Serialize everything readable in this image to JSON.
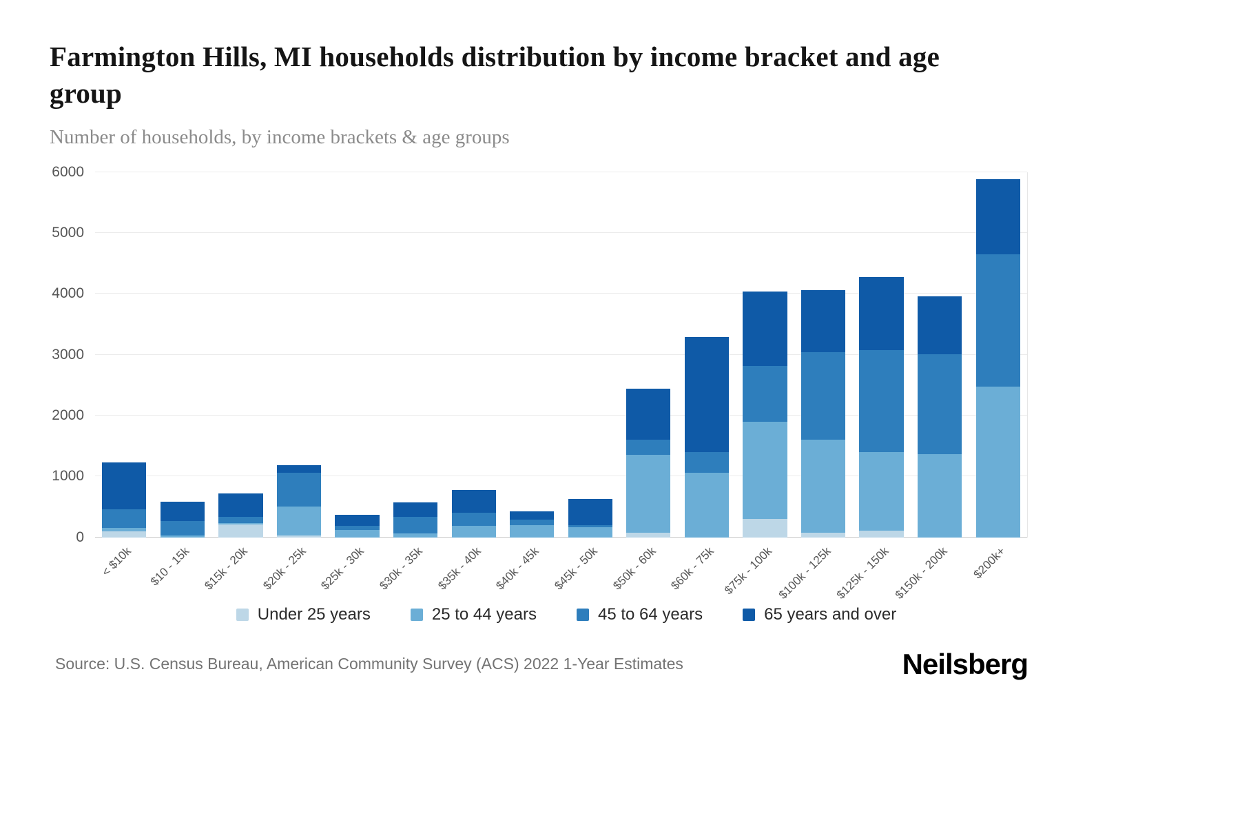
{
  "title": "Farmington Hills, MI households distribution by income bracket and age group",
  "subtitle": "Number of households, by income brackets & age groups",
  "source": "Source: U.S. Census Bureau, American Community Survey (ACS) 2022 1-Year Estimates",
  "brand": "Neilsberg",
  "chart_data": {
    "type": "bar",
    "stacked": true,
    "title": "Farmington Hills, MI households distribution by income bracket and age group",
    "xlabel": "",
    "ylabel": "Number of households",
    "ylim": [
      0,
      6000
    ],
    "yticks": [
      0,
      1000,
      2000,
      3000,
      4000,
      5000,
      6000
    ],
    "grid": true,
    "legend_position": "bottom",
    "categories": [
      "< $10k",
      "$10 - 15k",
      "$15k - 20k",
      "$20k - 25k",
      "$25k - 30k",
      "$30k - 35k",
      "$35k - 40k",
      "$40k - 45k",
      "$45k - 50k",
      "$50k - 60k",
      "$60k - 75k",
      "$75k - 100k",
      "$100k - 125k",
      "$125k - 150k",
      "$150k - 200k",
      "$200k+"
    ],
    "series": [
      {
        "name": "Under 25 years",
        "color": "#bdd7e7",
        "values": [
          95,
          0,
          215,
          30,
          0,
          0,
          0,
          0,
          0,
          80,
          0,
          300,
          80,
          110,
          0,
          0
        ]
      },
      {
        "name": "25 to 44 years",
        "color": "#6baed6",
        "values": [
          60,
          35,
          15,
          480,
          120,
          60,
          185,
          200,
          170,
          1270,
          1060,
          1600,
          1520,
          1290,
          1370,
          2470
        ]
      },
      {
        "name": "45 to 64 years",
        "color": "#2e7ebc",
        "values": [
          305,
          235,
          100,
          545,
          70,
          270,
          215,
          95,
          25,
          250,
          340,
          920,
          1440,
          1680,
          1640,
          2180
        ]
      },
      {
        "name": "65 years and over",
        "color": "#0f5aa7",
        "values": [
          770,
          320,
          390,
          135,
          180,
          240,
          380,
          135,
          435,
          840,
          1890,
          1220,
          1020,
          1200,
          950,
          1230
        ]
      }
    ],
    "totals": [
      1230,
      590,
      720,
      1190,
      370,
      570,
      780,
      430,
      630,
      2440,
      3290,
      4040,
      4060,
      4280,
      3960,
      5880
    ]
  }
}
